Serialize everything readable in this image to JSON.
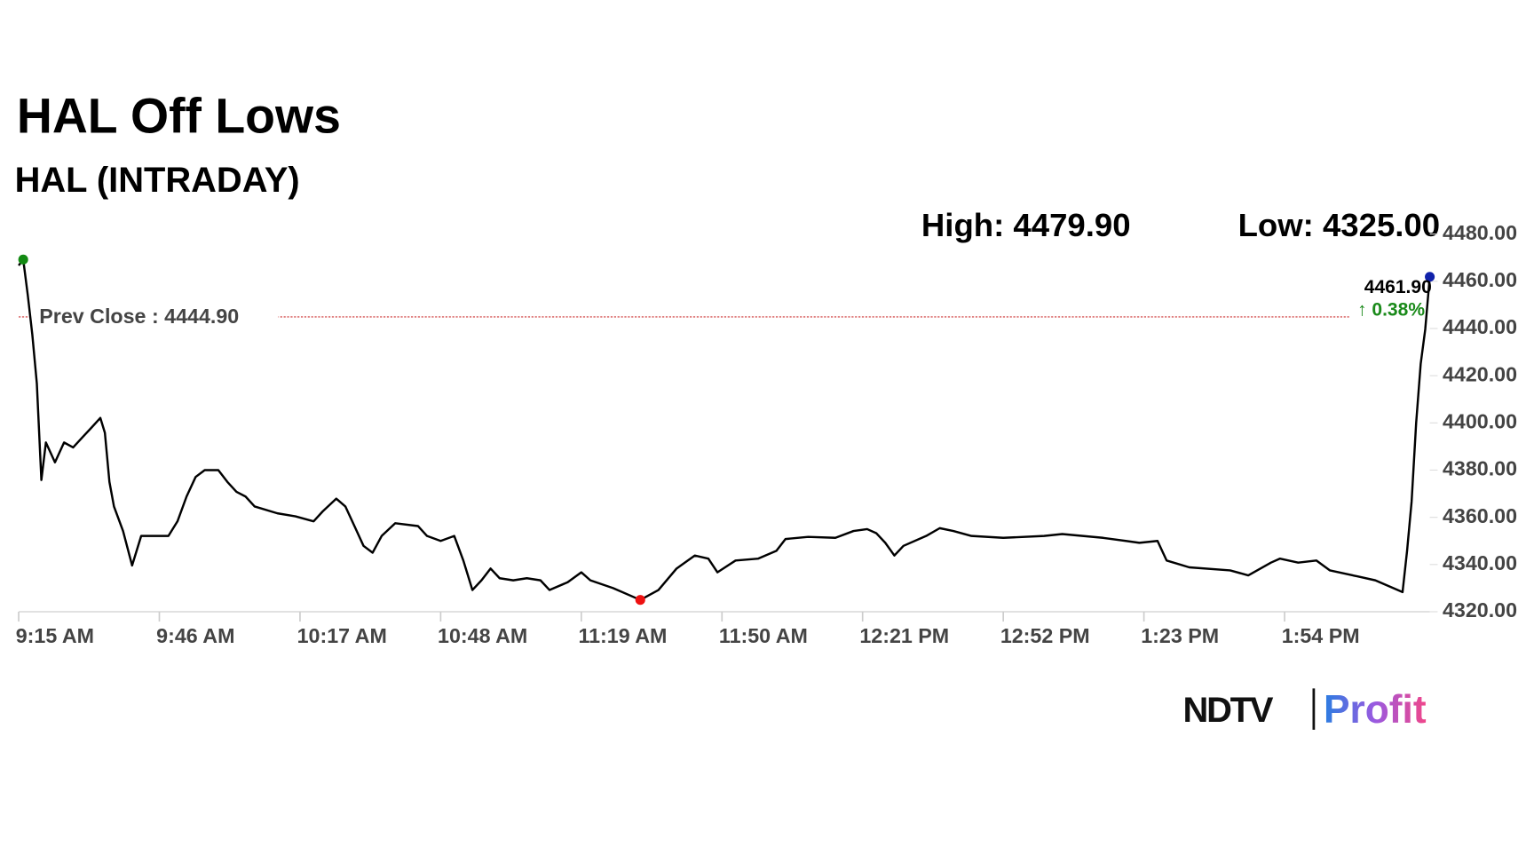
{
  "chart_data": {
    "type": "line",
    "title": "HAL Off Lows",
    "subtitle": "HAL (INTRADAY)",
    "high_label": "High: 4479.90",
    "low_label": "Low: 4325.00",
    "prev_close": 4444.9,
    "prev_close_label": "Prev Close : 4444.90",
    "last_label": "4461.90",
    "change_label": "↑ 0.38%",
    "color": "#000000",
    "prev_close_color": "#cc3333",
    "change_color": "#1a8a1a",
    "start_marker_color": "#138a13",
    "low_marker_color": "#ee1111",
    "end_marker_color": "#1122aa",
    "low_index": 58,
    "x": [
      555,
      556,
      557,
      558,
      559,
      560,
      561,
      563,
      565,
      567,
      569,
      571,
      573,
      574,
      575,
      576,
      578,
      580,
      582,
      584,
      588,
      590,
      592,
      594,
      596,
      599,
      601,
      603,
      605,
      607,
      612,
      616,
      620,
      622,
      625,
      627,
      629,
      631,
      633,
      635,
      638,
      643,
      645,
      648,
      651,
      653,
      655,
      657,
      659,
      661,
      664,
      667,
      670,
      672,
      676,
      679,
      681,
      686,
      692,
      696,
      700,
      704,
      707,
      709,
      713,
      718,
      722,
      724,
      729,
      735,
      739,
      742,
      744,
      746,
      748,
      750,
      755,
      758,
      761,
      765,
      772,
      781,
      785,
      794,
      802,
      806,
      808,
      813,
      822,
      826,
      831,
      833,
      837,
      841,
      844,
      850,
      854,
      860,
      861,
      862,
      863,
      864,
      865,
      866
    ],
    "values": [
      4466.7,
      4469.2,
      4454.2,
      4437.5,
      4416.7,
      4375.8,
      4391.7,
      4383.3,
      4391.7,
      4389.6,
      4393.8,
      4397.9,
      4402.1,
      4395.8,
      4375,
      4364.6,
      4354.2,
      4339.6,
      4352.1,
      4352.1,
      4352.1,
      4358.3,
      4368.8,
      4377.1,
      4380,
      4380,
      4375,
      4370.8,
      4368.8,
      4364.6,
      4361.7,
      4360.4,
      4358.3,
      4362.5,
      4367.9,
      4364.6,
      4356.3,
      4347.9,
      4345,
      4352.1,
      4357.5,
      4356.3,
      4352.1,
      4350,
      4352.1,
      4341.7,
      4329.2,
      4333.3,
      4338.3,
      4334.2,
      4333.3,
      4334.2,
      4333.3,
      4329.2,
      4332.5,
      4336.7,
      4333.3,
      4330,
      4325,
      4329.2,
      4338.3,
      4343.8,
      4342.5,
      4336.7,
      4341.7,
      4342.5,
      4345.8,
      4350.8,
      4351.7,
      4351.3,
      4354.2,
      4355,
      4353.3,
      4349.2,
      4343.8,
      4347.9,
      4352.1,
      4355.4,
      4354.2,
      4352.1,
      4351.3,
      4352.1,
      4352.9,
      4351.3,
      4349.2,
      4350,
      4341.7,
      4338.8,
      4337.5,
      4335.4,
      4340.8,
      4342.5,
      4340.8,
      4341.7,
      4337.5,
      4335,
      4333.3,
      4328.3,
      4345.8,
      4366.7,
      4400,
      4425,
      4439.6,
      4461.9
    ],
    "xlim": [
      555,
      866
    ],
    "xticks": [
      {
        "value": 555,
        "label": "9:15 AM"
      },
      {
        "value": 586,
        "label": "9:46 AM"
      },
      {
        "value": 617,
        "label": "10:17 AM"
      },
      {
        "value": 648,
        "label": "10:48 AM"
      },
      {
        "value": 679,
        "label": "11:19 AM"
      },
      {
        "value": 710,
        "label": "11:50 AM"
      },
      {
        "value": 741,
        "label": "12:21 PM"
      },
      {
        "value": 772,
        "label": "12:52 PM"
      },
      {
        "value": 803,
        "label": "1:23 PM"
      },
      {
        "value": 834,
        "label": "1:54 PM"
      }
    ],
    "ylim": [
      4320,
      4480
    ],
    "yticks": [
      {
        "value": 4320,
        "label": "4320.00"
      },
      {
        "value": 4340,
        "label": "4340.00"
      },
      {
        "value": 4360,
        "label": "4360.00"
      },
      {
        "value": 4380,
        "label": "4380.00"
      },
      {
        "value": 4400,
        "label": "4400.00"
      },
      {
        "value": 4420,
        "label": "4420.00"
      },
      {
        "value": 4440,
        "label": "4440.00"
      },
      {
        "value": 4460,
        "label": "4460.00"
      },
      {
        "value": 4480,
        "label": "4480.00"
      }
    ]
  },
  "logo": {
    "brand": "NDTV",
    "product": "Profit"
  }
}
